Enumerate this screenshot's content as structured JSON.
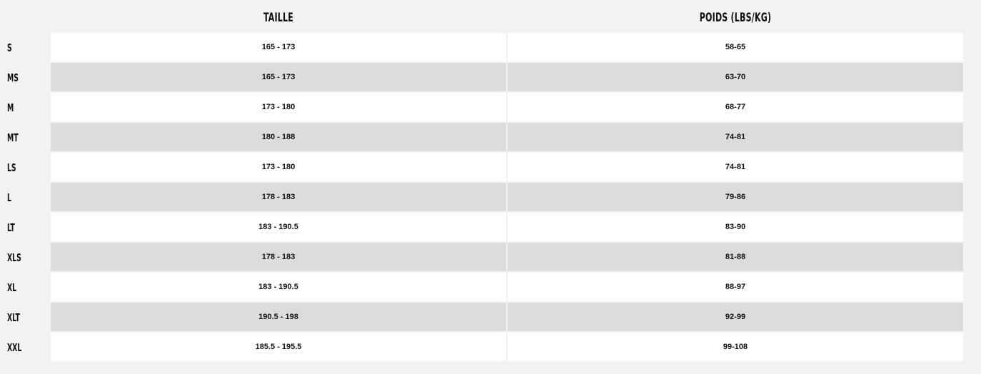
{
  "headers": {
    "size_col": "TAILLE",
    "weight_col": "POIDS (LBS/KG)"
  },
  "rows": [
    {
      "size": "S",
      "taille": "165 - 173",
      "poids": "58-65"
    },
    {
      "size": "MS",
      "taille": "165 - 173",
      "poids": "63-70"
    },
    {
      "size": "M",
      "taille": "173 - 180",
      "poids": "68-77"
    },
    {
      "size": "MT",
      "taille": "180 - 188",
      "poids": "74-81"
    },
    {
      "size": "LS",
      "taille": "173 - 180",
      "poids": "74-81"
    },
    {
      "size": "L",
      "taille": "178 - 183",
      "poids": "79-86"
    },
    {
      "size": "LT",
      "taille": "183 - 190.5",
      "poids": "83-90"
    },
    {
      "size": "XLS",
      "taille": "178 - 183",
      "poids": "81-88"
    },
    {
      "size": "XL",
      "taille": "183 - 190.5",
      "poids": "88-97"
    },
    {
      "size": "XLT",
      "taille": "190.5 - 198",
      "poids": "92-99"
    },
    {
      "size": "XXL",
      "taille": "185.5 - 195.5",
      "poids": "99-108"
    }
  ],
  "colors": {
    "background": "#f2f2f2",
    "row_light": "#ffffff",
    "row_dark": "#dcdcdc",
    "text": "#111111"
  }
}
